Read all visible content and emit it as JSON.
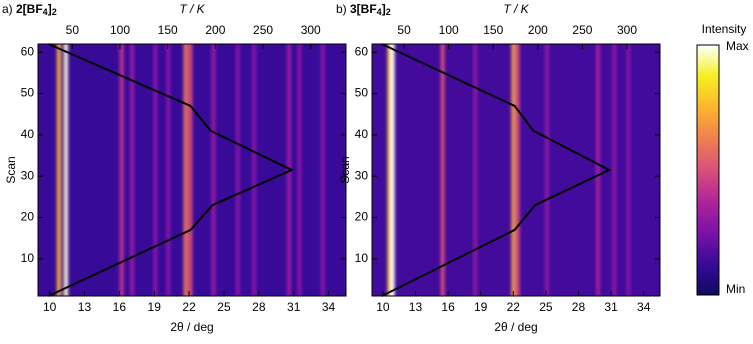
{
  "chart_data": [
    {
      "type": "heatmap",
      "panel": "a)",
      "title": [
        "2[BF",
        "4",
        "]",
        "2"
      ],
      "xlabel": "2θ / deg",
      "x2label": "T / K",
      "ylabel": "Scan",
      "xlim": [
        9,
        35.5
      ],
      "xticks": [
        10,
        13,
        16,
        19,
        22,
        25,
        28,
        31,
        34
      ],
      "x2lim": [
        14,
        337
      ],
      "x2ticks": [
        50,
        100,
        150,
        200,
        250,
        300
      ],
      "ylim": [
        1,
        62
      ],
      "yticks": [
        10,
        20,
        30,
        40,
        50,
        60
      ],
      "background": 0.12,
      "peaks": {
        "x": [
          10.8,
          11.4,
          16.2,
          17.1,
          19.1,
          20.2,
          21.7,
          22.1,
          24.1,
          26.2,
          27.6,
          30.6,
          31.5,
          33.5
        ],
        "intensity": [
          0.75,
          0.97,
          0.42,
          0.32,
          0.28,
          0.28,
          0.6,
          0.5,
          0.32,
          0.28,
          0.28,
          0.33,
          0.28,
          0.28
        ]
      },
      "line": {
        "color": "#000000",
        "x": [
          25,
          174,
          195,
          280,
          197,
          174,
          25
        ],
        "y": [
          62,
          47,
          41,
          31.5,
          23,
          17,
          1
        ]
      }
    },
    {
      "type": "heatmap",
      "panel": "b)",
      "title": [
        "3[BF",
        "4",
        "]",
        "2"
      ],
      "xlabel": "2θ / deg",
      "x2label": "T / K",
      "ylabel": "Scan",
      "xlim": [
        9,
        35.5
      ],
      "xticks": [
        10,
        13,
        16,
        19,
        22,
        25,
        28,
        31,
        34
      ],
      "x2lim": [
        14,
        337
      ],
      "x2ticks": [
        50,
        100,
        150,
        200,
        250,
        300
      ],
      "ylim": [
        1,
        62
      ],
      "yticks": [
        10,
        20,
        30,
        40,
        50,
        60
      ],
      "background": 0.14,
      "peaks": {
        "x": [
          10.6,
          10.9,
          15.5,
          18.5,
          22.0,
          22.4,
          25.1,
          29.8,
          31.3,
          32.6
        ],
        "intensity": [
          0.8,
          1.0,
          0.5,
          0.3,
          0.7,
          0.5,
          0.3,
          0.35,
          0.3,
          0.28
        ]
      },
      "line": {
        "color": "#000000",
        "x": [
          25,
          174,
          195,
          280,
          197,
          174,
          25
        ],
        "y": [
          62,
          47,
          41,
          31.5,
          23,
          17,
          1
        ]
      }
    }
  ],
  "colorbar": {
    "title": "Intensity",
    "max_label": "Max",
    "min_label": "Min",
    "colormap": [
      "#0d0a5e",
      "#3a0a9a",
      "#7a12a8",
      "#b0259a",
      "#d8507a",
      "#f0804f",
      "#fbb52d",
      "#f5f020",
      "#ffffff"
    ]
  }
}
